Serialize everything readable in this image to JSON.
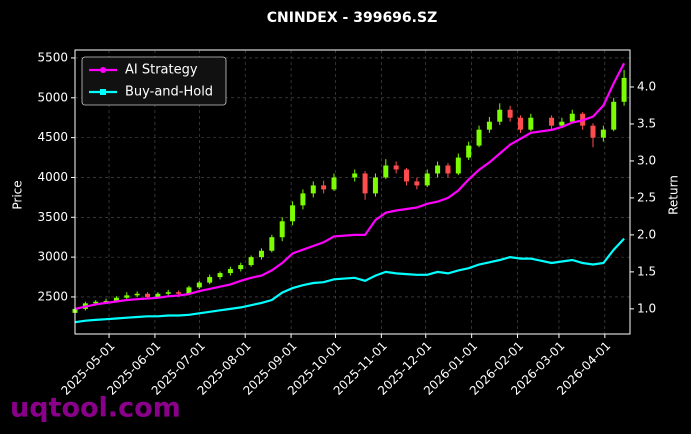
{
  "chart_data": {
    "type": "candlestick",
    "title": "CNINDEX - 399696.SZ",
    "ylabel": "Price",
    "y2label": "Return",
    "watermark": "uqtool.com",
    "x": [
      "2025-04-08",
      "2025-04-15",
      "2025-04-22",
      "2025-04-29",
      "2025-05-06",
      "2025-05-13",
      "2025-05-20",
      "2025-05-27",
      "2025-06-03",
      "2025-06-10",
      "2025-06-17",
      "2025-06-24",
      "2025-07-01",
      "2025-07-08",
      "2025-07-15",
      "2025-07-22",
      "2025-07-29",
      "2025-08-05",
      "2025-08-12",
      "2025-08-19",
      "2025-08-26",
      "2025-09-02",
      "2025-09-09",
      "2025-09-16",
      "2025-09-23",
      "2025-09-30",
      "2025-10-14",
      "2025-10-21",
      "2025-10-28",
      "2025-11-04",
      "2025-11-11",
      "2025-11-18",
      "2025-11-25",
      "2025-12-02",
      "2025-12-09",
      "2025-12-16",
      "2025-12-23",
      "2025-12-30",
      "2026-01-06",
      "2026-01-13",
      "2026-01-20",
      "2026-01-27",
      "2026-02-03",
      "2026-02-10",
      "2026-02-24",
      "2026-03-03",
      "2026-03-10",
      "2026-03-17",
      "2026-03-24",
      "2026-03-31",
      "2026-04-07",
      "2026-04-14"
    ],
    "open": [
      2300,
      2350,
      2420,
      2440,
      2450,
      2490,
      2520,
      2540,
      2500,
      2540,
      2560,
      2540,
      2620,
      2680,
      2750,
      2800,
      2850,
      2900,
      3000,
      3080,
      3250,
      3450,
      3650,
      3800,
      3900,
      3850,
      4000,
      4050,
      3800,
      4000,
      4150,
      4100,
      3950,
      3900,
      4050,
      4150,
      4050,
      4250,
      4400,
      4600,
      4700,
      4850,
      4750,
      4600,
      4750,
      4650,
      4700,
      4800,
      4650,
      4500,
      4600,
      4950
    ],
    "high": [
      2380,
      2440,
      2460,
      2480,
      2510,
      2560,
      2570,
      2560,
      2560,
      2590,
      2580,
      2640,
      2700,
      2780,
      2820,
      2880,
      2930,
      3020,
      3110,
      3280,
      3500,
      3700,
      3850,
      3950,
      3960,
      4050,
      4100,
      4080,
      4050,
      4230,
      4200,
      4120,
      4000,
      4100,
      4200,
      4180,
      4300,
      4450,
      4650,
      4760,
      4930,
      4900,
      4780,
      4800,
      4780,
      4750,
      4850,
      4820,
      4680,
      4650,
      5000,
      5350
    ],
    "low": [
      2250,
      2330,
      2400,
      2420,
      2440,
      2470,
      2500,
      2480,
      2490,
      2520,
      2510,
      2530,
      2600,
      2660,
      2720,
      2770,
      2820,
      2880,
      2970,
      3060,
      3200,
      3400,
      3600,
      3750,
      3800,
      3830,
      3950,
      3720,
      3760,
      3980,
      4050,
      3900,
      3850,
      3880,
      4000,
      4000,
      4030,
      4220,
      4380,
      4560,
      4660,
      4700,
      4560,
      4580,
      4600,
      4620,
      4680,
      4600,
      4380,
      4450,
      4580,
      4900
    ],
    "close": [
      2350,
      2420,
      2440,
      2450,
      2490,
      2520,
      2540,
      2500,
      2540,
      2560,
      2540,
      2620,
      2680,
      2750,
      2800,
      2850,
      2900,
      3000,
      3080,
      3250,
      3450,
      3650,
      3800,
      3900,
      3850,
      4000,
      4050,
      3800,
      4000,
      4150,
      4100,
      3950,
      3900,
      4050,
      4150,
      4050,
      4250,
      4400,
      4600,
      4700,
      4850,
      4750,
      4600,
      4750,
      4650,
      4700,
      4800,
      4650,
      4500,
      4600,
      4950,
      5250
    ],
    "up_color": "#7cfc00",
    "down_color": "#ff4d4d",
    "series": [
      {
        "name": "AI Strategy",
        "color": "#ff00ff",
        "axis": "y2",
        "values": [
          1.0,
          1.03,
          1.06,
          1.08,
          1.1,
          1.12,
          1.13,
          1.14,
          1.15,
          1.17,
          1.18,
          1.2,
          1.24,
          1.27,
          1.3,
          1.33,
          1.38,
          1.42,
          1.45,
          1.52,
          1.62,
          1.75,
          1.8,
          1.85,
          1.9,
          1.98,
          2.0,
          2.0,
          2.2,
          2.3,
          2.33,
          2.35,
          2.37,
          2.42,
          2.45,
          2.5,
          2.6,
          2.75,
          2.88,
          2.98,
          3.1,
          3.22,
          3.3,
          3.38,
          3.42,
          3.46,
          3.52,
          3.55,
          3.6,
          3.75,
          4.05,
          4.32
        ]
      },
      {
        "name": "Buy-and-Hold",
        "color": "#00ffff",
        "axis": "y2",
        "values": [
          0.82,
          0.84,
          0.85,
          0.86,
          0.87,
          0.88,
          0.89,
          0.9,
          0.9,
          0.91,
          0.91,
          0.92,
          0.94,
          0.96,
          0.98,
          1.0,
          1.02,
          1.05,
          1.08,
          1.12,
          1.22,
          1.28,
          1.32,
          1.35,
          1.36,
          1.4,
          1.42,
          1.38,
          1.45,
          1.5,
          1.48,
          1.47,
          1.46,
          1.46,
          1.5,
          1.48,
          1.52,
          1.55,
          1.6,
          1.63,
          1.66,
          1.7,
          1.68,
          1.68,
          1.62,
          1.64,
          1.66,
          1.62,
          1.6,
          1.62,
          1.8,
          1.95
        ]
      }
    ],
    "xlim": [
      "2025-04-08",
      "2026-04-18"
    ],
    "xticks": [
      "2025-05-01",
      "2025-06-01",
      "2025-07-01",
      "2025-08-01",
      "2025-09-01",
      "2025-10-01",
      "2025-11-01",
      "2025-12-01",
      "2026-01-01",
      "2026-02-01",
      "2026-03-01",
      "2026-04-01"
    ],
    "ylim": [
      2035,
      5600
    ],
    "yticks": [
      2500,
      3000,
      3500,
      4000,
      4500,
      5000,
      5500
    ],
    "y2lim": [
      0.66,
      4.5
    ],
    "y2ticks": [
      {
        "value": 1,
        "label": "1.0"
      },
      1.5,
      {
        "value": 2,
        "label": "2.0"
      },
      2.5,
      {
        "value": 3,
        "label": "3.0"
      },
      3.5,
      {
        "value": 4,
        "label": "4.0"
      }
    ],
    "grid": true,
    "legend": "upper left"
  }
}
